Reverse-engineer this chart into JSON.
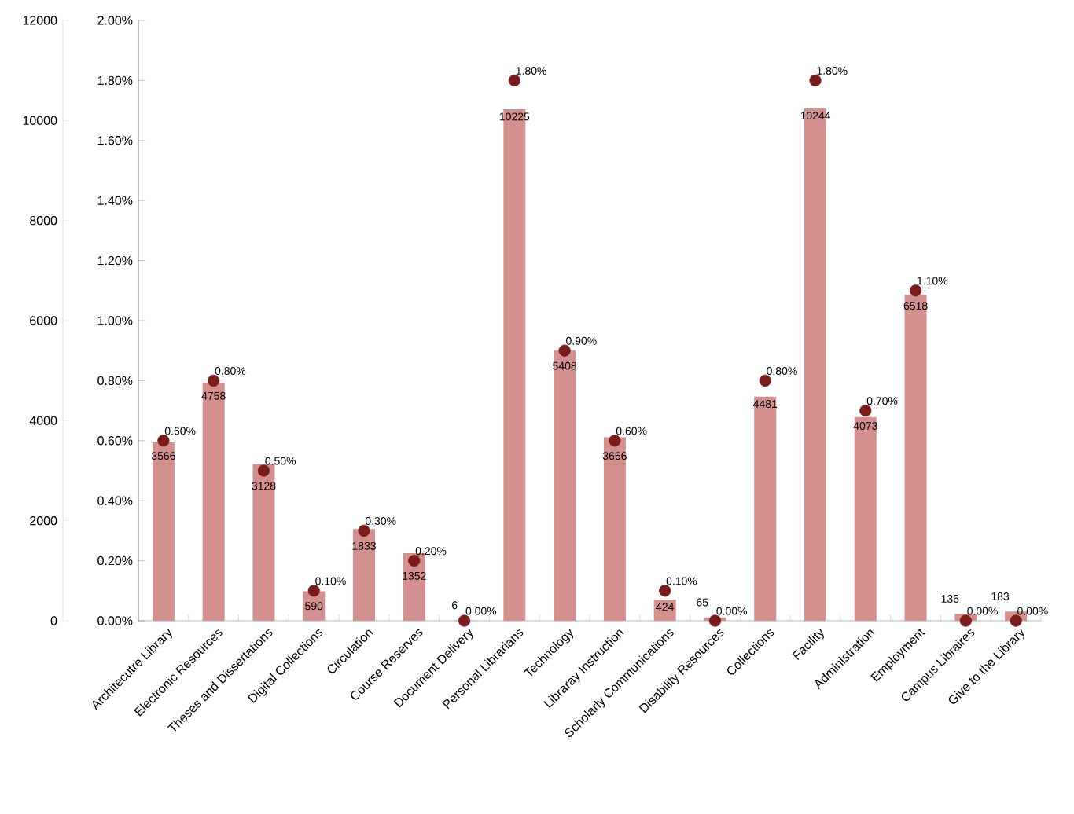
{
  "chart_data": {
    "type": "bar",
    "categories": [
      "Architecutre Library",
      "Electronic Resources",
      "Theses and Dissertations",
      "Digital Collections",
      "Circulation",
      "Course Reserves",
      "Document Delivery",
      "Personal Librarians",
      "Technology",
      "Libraray Instruction",
      "Scholarly Communications",
      "Disability Resources",
      "Collections",
      "Facility",
      "Administration",
      "Employment",
      "Campus Libraires",
      "Give to the Library"
    ],
    "series": [
      {
        "color": "#d4908f",
        "values": [
          3566,
          4758,
          3128,
          590,
          1833,
          1352,
          6,
          10225,
          5408,
          3666,
          424,
          65,
          4481,
          10244,
          4073,
          6518,
          136,
          183
        ]
      },
      {
        "type": "scatter",
        "axis": "y2",
        "color": "#7a1c1c",
        "marker": "circle",
        "values": [
          0.6,
          0.8,
          0.5,
          0.1,
          0.3,
          0.2,
          0,
          1.8,
          0.9,
          0.6,
          0.1,
          0,
          0.8,
          1.8,
          0.7,
          1.1,
          0,
          0
        ],
        "value_labels": [
          "0.60%",
          "0.80%",
          "0.50%",
          "0.10%",
          "0.30%",
          "0.20%",
          "0.00%",
          "1.80%",
          "0.90%",
          "0.60%",
          "0.10%",
          "0.00%",
          "0.80%",
          "1.80%",
          "0.70%",
          "1.10%",
          "0.00%",
          "0.00%"
        ]
      }
    ],
    "data_labels": true,
    "ylim": [
      0,
      12000
    ],
    "yticks": [
      0,
      2000,
      4000,
      6000,
      8000,
      10000,
      12000
    ],
    "y2lim": [
      0,
      2
    ],
    "y2ticks": [
      {
        "value": 0,
        "label": "0.00%"
      },
      {
        "value": 0.2,
        "label": "0.20%"
      },
      {
        "value": 0.4,
        "label": "0.40%"
      },
      {
        "value": 0.6,
        "label": "0.60%"
      },
      {
        "value": 0.8,
        "label": "0.80%"
      },
      {
        "value": 1.0,
        "label": "1.00%"
      },
      {
        "value": 1.2,
        "label": "1.20%"
      },
      {
        "value": 1.4,
        "label": "1.40%"
      },
      {
        "value": 1.6,
        "label": "1.60%"
      },
      {
        "value": 1.8,
        "label": "1.80%"
      },
      {
        "value": 2.0,
        "label": "2.00%"
      }
    ]
  }
}
